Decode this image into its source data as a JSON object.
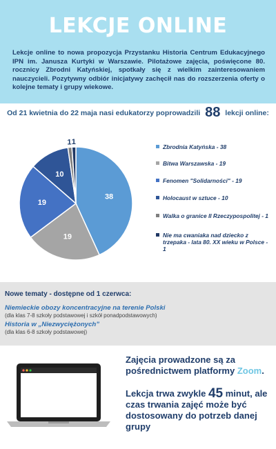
{
  "header": {
    "title": "LEKCJE ONLINE",
    "intro": "Lekcje online to nowa propozycja Przystanku Historia Centrum Edukacyjnego IPN im. Janusza Kurtyki w Warszawie. Pilotażowe zajęcia, poświęcone 80. rocznicy Zbrodni Katyńskiej, spotkały się z wielkim zainteresowaniem nauczycieli. Pozytywny odbiór inicjatywy zachęcił nas do rozszerzenia oferty o kolejne tematy i grupy wiekowe."
  },
  "summary": {
    "before": "Od 21 kwietnia do 22 maja nasi edukatorzy poprowadzili",
    "count": "88",
    "after": "lekcji online:"
  },
  "chart_data": {
    "type": "pie",
    "title": "",
    "slices": [
      {
        "label": "Zbrodnia Katyńska - 38",
        "value": 38,
        "color": "#5b9bd5"
      },
      {
        "label": "Bitwa Warszawska - 19",
        "value": 19,
        "color": "#a5a5a5"
      },
      {
        "label": "Fenomen \"Solidarności\" - 19",
        "value": 19,
        "color": "#4472c4"
      },
      {
        "label": "Holocaust w sztuce - 10",
        "value": 10,
        "color": "#2f5597"
      },
      {
        "label": "Walka o granice II Rzeczypospolitej - 1",
        "value": 1,
        "color": "#7f7f7f"
      },
      {
        "label": "Nie ma cwaniaka nad dziecko z trzepaka - lata 80. XX wieku w Polsce - 1",
        "value": 1,
        "color": "#203864"
      }
    ],
    "legend_position": "right"
  },
  "topics": {
    "heading": "Nowe tematy - dostępne od 1 czerwca:",
    "items": [
      {
        "title": "Niemieckie obozy koncentracyjne na terenie Polski",
        "note": "(dla klas 7-8 szkoły podstawowej i szkół ponadpodstawowych)"
      },
      {
        "title": "Historia w „Niezwyciężonych”",
        "note": "(dla klas 6-8 szkoły podstawowej)"
      }
    ]
  },
  "info": {
    "platform_text": "Zajęcia prowadzone są za pośrednictwem platformy",
    "platform_name": "Zoom",
    "platform_end": ".",
    "duration_before": "Lekcja trwa zwykle",
    "duration_value": "45",
    "duration_after": "minut, ale czas trwania zajęć może być dostosowany do potrzeb danej grupy"
  },
  "colors": {
    "header_bg": "#a9dff0",
    "text_dark": "#1f3d6a",
    "accent": "#6fc6e3",
    "topics_bg": "#e4e4e4"
  }
}
